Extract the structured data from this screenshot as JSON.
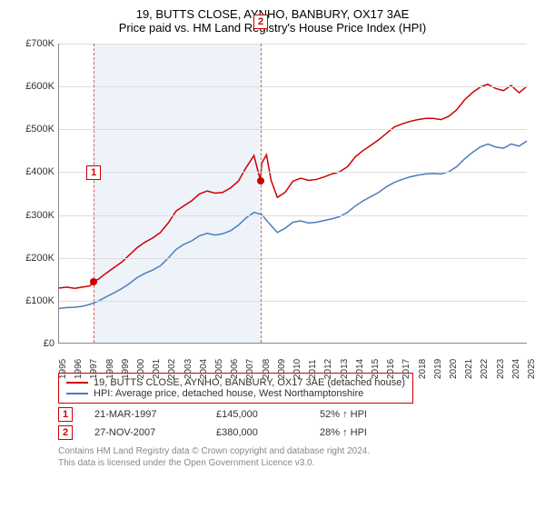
{
  "title": "19, BUTTS CLOSE, AYNHO, BANBURY, OX17 3AE",
  "subtitle": "Price paid vs. HM Land Registry's House Price Index (HPI)",
  "chart": {
    "type": "line",
    "background_color": "#ffffff",
    "grid_color": "#dddddd",
    "axis_color": "#888888",
    "ylim": [
      0,
      700000
    ],
    "ytick_step": 100000,
    "ytick_labels": [
      "£0",
      "£100K",
      "£200K",
      "£300K",
      "£400K",
      "£500K",
      "£600K",
      "£700K"
    ],
    "xlim": [
      1995,
      2025
    ],
    "xticks": [
      1995,
      1996,
      1997,
      1998,
      1999,
      2000,
      2001,
      2002,
      2003,
      2004,
      2005,
      2006,
      2007,
      2008,
      2009,
      2010,
      2011,
      2012,
      2013,
      2014,
      2015,
      2016,
      2017,
      2018,
      2019,
      2020,
      2021,
      2022,
      2023,
      2024,
      2025
    ],
    "band_color": "#eef2f9",
    "band_start": 1997.22,
    "band_end": 2007.91,
    "dash_color": "#cc6666",
    "series": [
      {
        "name": "property",
        "color": "#cc0000",
        "line_width": 1.5,
        "points": [
          [
            1995,
            128000
          ],
          [
            1995.5,
            130000
          ],
          [
            1996,
            127000
          ],
          [
            1996.5,
            130000
          ],
          [
            1997,
            133000
          ],
          [
            1997.22,
            145000
          ],
          [
            1997.5,
            148000
          ],
          [
            1998,
            162000
          ],
          [
            1998.5,
            175000
          ],
          [
            1999,
            188000
          ],
          [
            1999.5,
            205000
          ],
          [
            2000,
            222000
          ],
          [
            2000.5,
            235000
          ],
          [
            2001,
            245000
          ],
          [
            2001.5,
            258000
          ],
          [
            2002,
            280000
          ],
          [
            2002.5,
            308000
          ],
          [
            2003,
            320000
          ],
          [
            2003.5,
            332000
          ],
          [
            2004,
            348000
          ],
          [
            2004.5,
            355000
          ],
          [
            2005,
            350000
          ],
          [
            2005.5,
            352000
          ],
          [
            2006,
            362000
          ],
          [
            2006.5,
            378000
          ],
          [
            2007,
            410000
          ],
          [
            2007.5,
            438000
          ],
          [
            2007.91,
            380000
          ],
          [
            2008,
            420000
          ],
          [
            2008.3,
            440000
          ],
          [
            2008.6,
            380000
          ],
          [
            2009,
            340000
          ],
          [
            2009.5,
            352000
          ],
          [
            2010,
            378000
          ],
          [
            2010.5,
            385000
          ],
          [
            2011,
            380000
          ],
          [
            2011.5,
            382000
          ],
          [
            2012,
            388000
          ],
          [
            2012.5,
            395000
          ],
          [
            2013,
            400000
          ],
          [
            2013.5,
            412000
          ],
          [
            2014,
            435000
          ],
          [
            2014.5,
            450000
          ],
          [
            2015,
            462000
          ],
          [
            2015.5,
            475000
          ],
          [
            2016,
            490000
          ],
          [
            2016.5,
            505000
          ],
          [
            2017,
            512000
          ],
          [
            2017.5,
            518000
          ],
          [
            2018,
            522000
          ],
          [
            2018.5,
            525000
          ],
          [
            2019,
            525000
          ],
          [
            2019.5,
            522000
          ],
          [
            2020,
            530000
          ],
          [
            2020.5,
            545000
          ],
          [
            2021,
            568000
          ],
          [
            2021.5,
            585000
          ],
          [
            2022,
            598000
          ],
          [
            2022.5,
            605000
          ],
          [
            2023,
            595000
          ],
          [
            2023.5,
            590000
          ],
          [
            2024,
            602000
          ],
          [
            2024.5,
            585000
          ],
          [
            2025,
            600000
          ]
        ]
      },
      {
        "name": "hpi",
        "color": "#4a7ebb",
        "line_width": 1.5,
        "points": [
          [
            1995,
            80000
          ],
          [
            1995.5,
            82000
          ],
          [
            1996,
            83000
          ],
          [
            1996.5,
            85000
          ],
          [
            1997,
            90000
          ],
          [
            1997.5,
            97000
          ],
          [
            1998,
            107000
          ],
          [
            1998.5,
            116000
          ],
          [
            1999,
            126000
          ],
          [
            1999.5,
            138000
          ],
          [
            2000,
            152000
          ],
          [
            2000.5,
            162000
          ],
          [
            2001,
            170000
          ],
          [
            2001.5,
            180000
          ],
          [
            2002,
            198000
          ],
          [
            2002.5,
            218000
          ],
          [
            2003,
            230000
          ],
          [
            2003.5,
            238000
          ],
          [
            2004,
            250000
          ],
          [
            2004.5,
            256000
          ],
          [
            2005,
            252000
          ],
          [
            2005.5,
            255000
          ],
          [
            2006,
            262000
          ],
          [
            2006.5,
            275000
          ],
          [
            2007,
            292000
          ],
          [
            2007.5,
            305000
          ],
          [
            2008,
            300000
          ],
          [
            2008.5,
            278000
          ],
          [
            2009,
            258000
          ],
          [
            2009.5,
            268000
          ],
          [
            2010,
            282000
          ],
          [
            2010.5,
            285000
          ],
          [
            2011,
            280000
          ],
          [
            2011.5,
            282000
          ],
          [
            2012,
            286000
          ],
          [
            2012.5,
            290000
          ],
          [
            2013,
            295000
          ],
          [
            2013.5,
            305000
          ],
          [
            2014,
            320000
          ],
          [
            2014.5,
            332000
          ],
          [
            2015,
            342000
          ],
          [
            2015.5,
            352000
          ],
          [
            2016,
            365000
          ],
          [
            2016.5,
            375000
          ],
          [
            2017,
            382000
          ],
          [
            2017.5,
            388000
          ],
          [
            2018,
            392000
          ],
          [
            2018.5,
            395000
          ],
          [
            2019,
            396000
          ],
          [
            2019.5,
            395000
          ],
          [
            2020,
            400000
          ],
          [
            2020.5,
            412000
          ],
          [
            2021,
            430000
          ],
          [
            2021.5,
            445000
          ],
          [
            2022,
            458000
          ],
          [
            2022.5,
            465000
          ],
          [
            2023,
            458000
          ],
          [
            2023.5,
            455000
          ],
          [
            2024,
            465000
          ],
          [
            2024.5,
            460000
          ],
          [
            2025,
            472000
          ]
        ]
      }
    ],
    "markers": [
      {
        "id": "1",
        "x": 1997.22,
        "y": 145000,
        "color": "#cc0000",
        "badge_y_offset": -120
      },
      {
        "id": "2",
        "x": 2007.91,
        "y": 380000,
        "color": "#cc0000",
        "badge_y_offset": -175
      }
    ],
    "label_fontsize": 11
  },
  "legend": {
    "border_color": "#cc0000",
    "items": [
      {
        "color": "#cc0000",
        "label": "19, BUTTS CLOSE, AYNHO, BANBURY, OX17 3AE (detached house)"
      },
      {
        "color": "#4a7ebb",
        "label": "HPI: Average price, detached house, West Northamptonshire"
      }
    ]
  },
  "transactions": [
    {
      "badge": "1",
      "date": "21-MAR-1997",
      "price": "£145,000",
      "delta": "52% ↑ HPI"
    },
    {
      "badge": "2",
      "date": "27-NOV-2007",
      "price": "£380,000",
      "delta": "28% ↑ HPI"
    }
  ],
  "footer_line1": "Contains HM Land Registry data © Crown copyright and database right 2024.",
  "footer_line2": "This data is licensed under the Open Government Licence v3.0."
}
